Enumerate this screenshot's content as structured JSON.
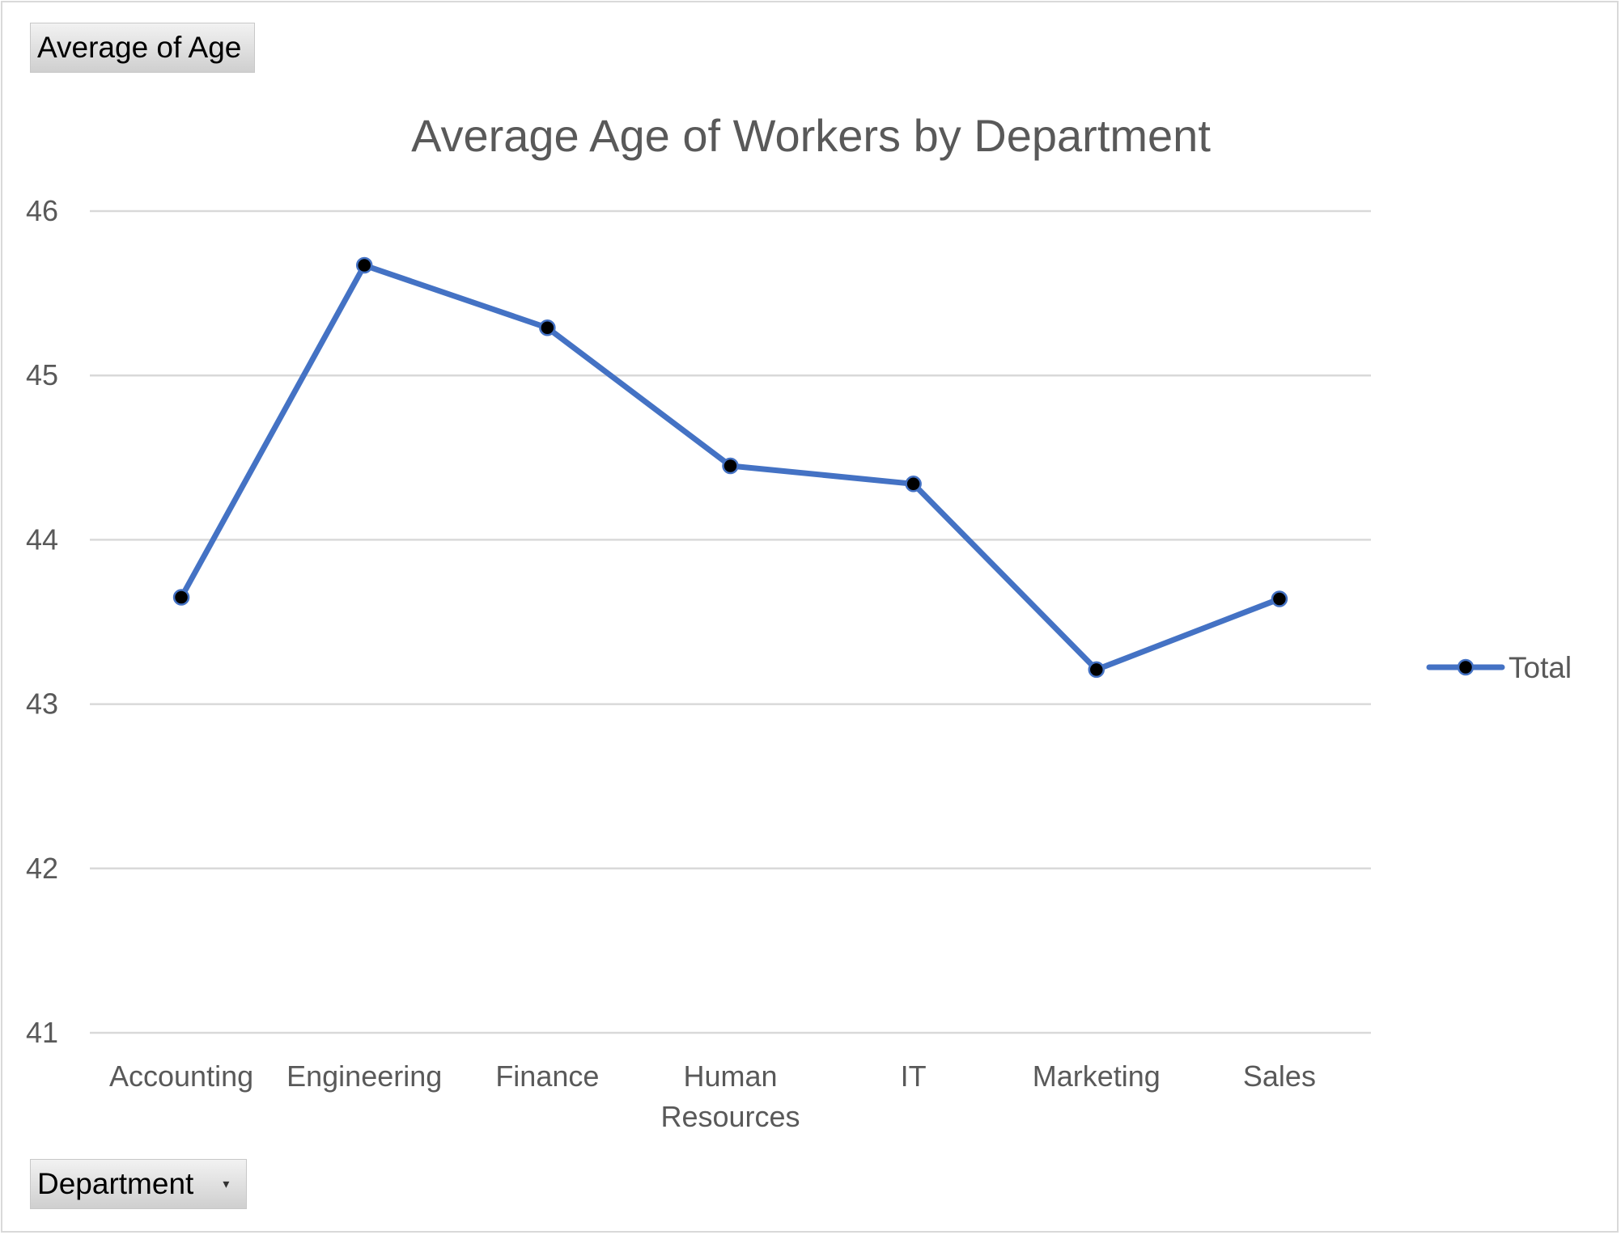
{
  "pivot": {
    "value_field_label": "Average  of Age",
    "axis_field_label": "Department"
  },
  "chart_data": {
    "type": "line",
    "title": "Average Age of Workers by Department",
    "xlabel": "",
    "ylabel": "",
    "categories": [
      "Accounting",
      "Engineering",
      "Finance",
      "Human Resources",
      "IT",
      "Marketing",
      "Sales"
    ],
    "category_lines": [
      [
        "Accounting"
      ],
      [
        "Engineering"
      ],
      [
        "Finance"
      ],
      [
        "Human",
        "Resources"
      ],
      [
        "IT"
      ],
      [
        "Marketing"
      ],
      [
        "Sales"
      ]
    ],
    "series": [
      {
        "name": "Total",
        "values": [
          43.65,
          45.67,
          45.29,
          44.45,
          44.34,
          43.21,
          43.64
        ],
        "line_color": "#4472c4",
        "marker_color": "#000000"
      }
    ],
    "ylim": [
      41,
      46
    ],
    "yticks": [
      41,
      42,
      43,
      44,
      45,
      46
    ],
    "grid": true,
    "gridline_color": "#d9d9d9",
    "legend_position": "right"
  }
}
